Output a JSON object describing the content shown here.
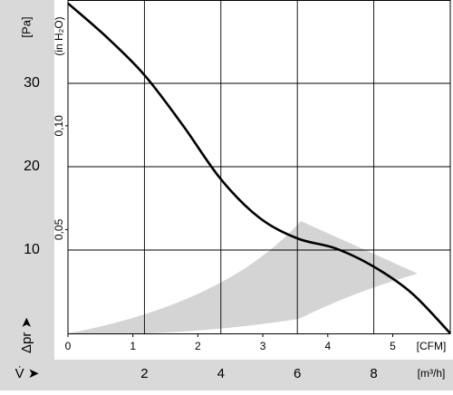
{
  "chart_data": {
    "type": "line",
    "y_label": "[Pa]",
    "y_symbol": "Δpr ➤",
    "y2_label": "(in H₂O)",
    "x_label": "[m³/h]",
    "x_symbol": "V̇ ➤",
    "x2_label": "[CFM]",
    "x": [
      0,
      1,
      2,
      3,
      4,
      5,
      6,
      7,
      8,
      9,
      10
    ],
    "series": [
      {
        "color": "#000000",
        "values": [
          39.6,
          35.6,
          31,
          25,
          18.5,
          13.9,
          11.4,
          10.2,
          8,
          4.8,
          0
        ]
      }
    ],
    "xlim": [
      0,
      10
    ],
    "xticks": [
      2,
      4,
      6,
      8
    ],
    "x2lim": [
      0,
      5.886
    ],
    "x2ticks": [
      0,
      1,
      2,
      3,
      4,
      5
    ],
    "ylim": [
      0,
      40
    ],
    "yticks": [
      10,
      20,
      30
    ],
    "y2lim": [
      0,
      0.1606
    ],
    "y2ticks": [
      {
        "value": 0.05,
        "label": "0,05"
      },
      {
        "value": 0.1,
        "label": "0,10"
      }
    ],
    "grid": true
  }
}
